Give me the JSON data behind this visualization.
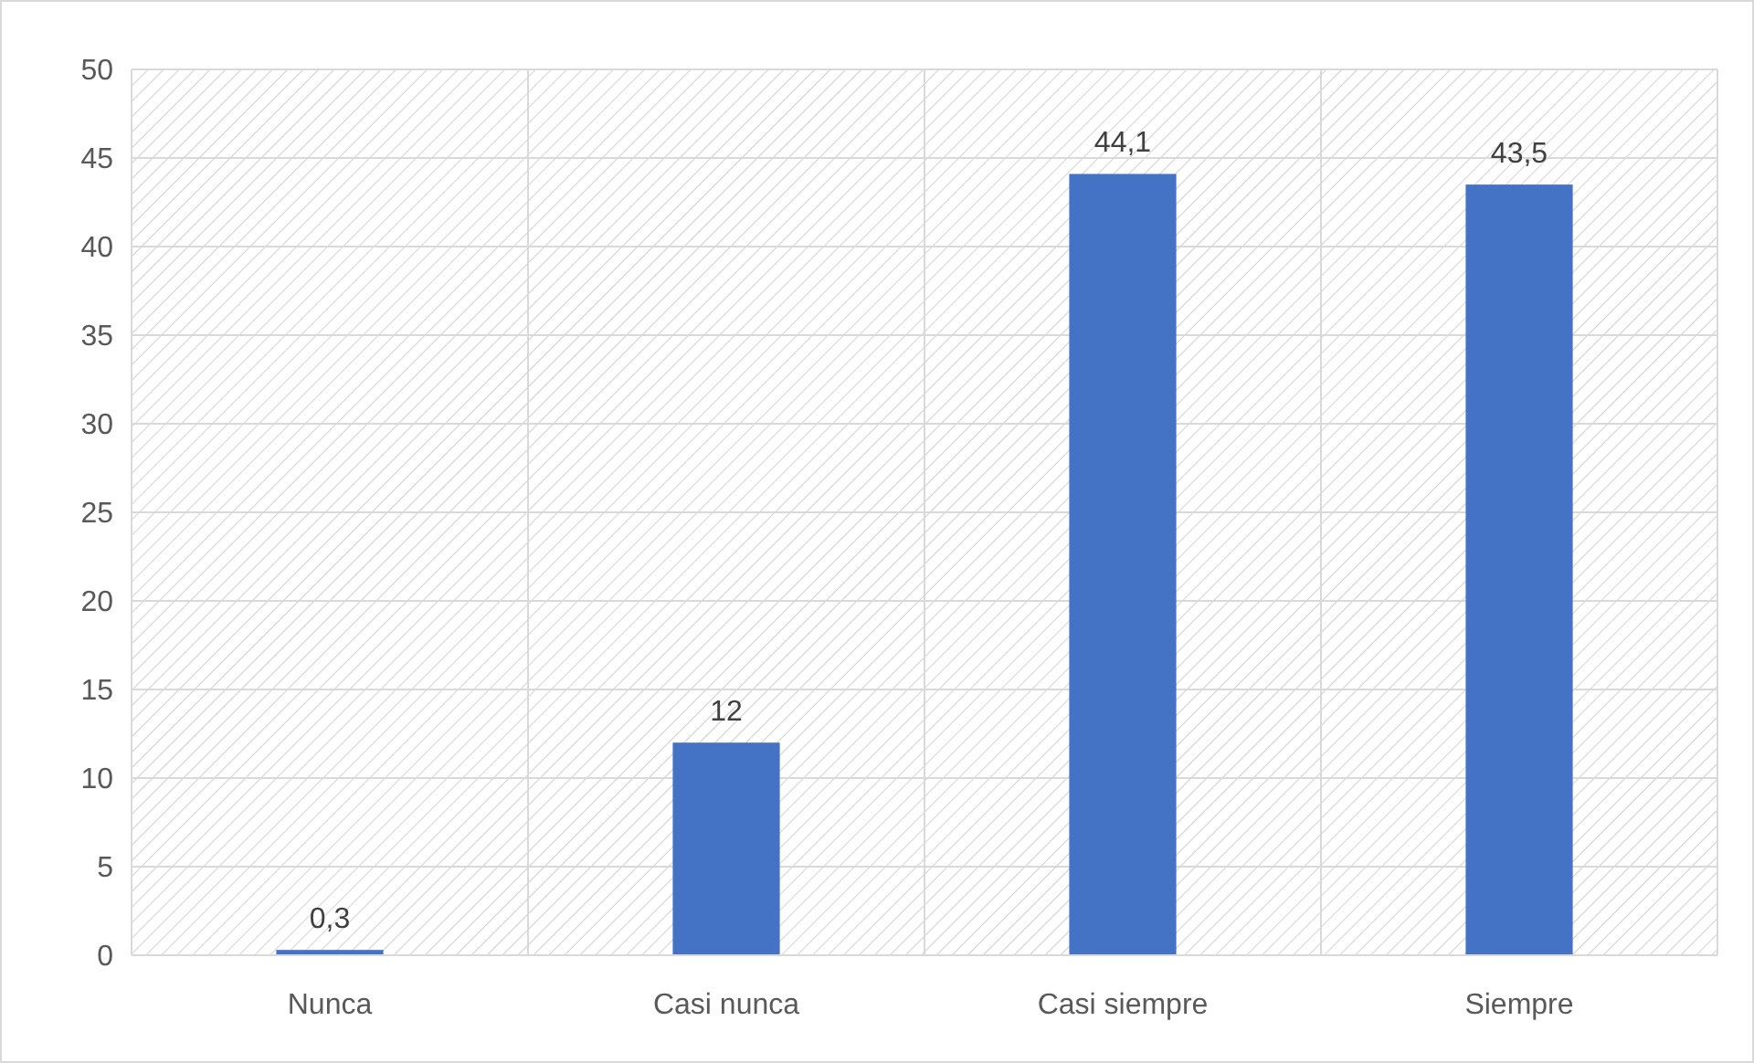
{
  "chart_data": {
    "type": "bar",
    "categories": [
      "Nunca",
      "Casi nunca",
      "Casi siempre",
      "Siempre"
    ],
    "values": [
      0.3,
      12,
      44.1,
      43.5
    ],
    "value_labels": [
      "0,3",
      "12",
      "44,1",
      "43,5"
    ],
    "color": "#4472c4",
    "ylim": [
      0,
      50
    ],
    "yticks": [
      0,
      5,
      10,
      15,
      20,
      25,
      30,
      35,
      40,
      45,
      50
    ],
    "grid": true
  }
}
